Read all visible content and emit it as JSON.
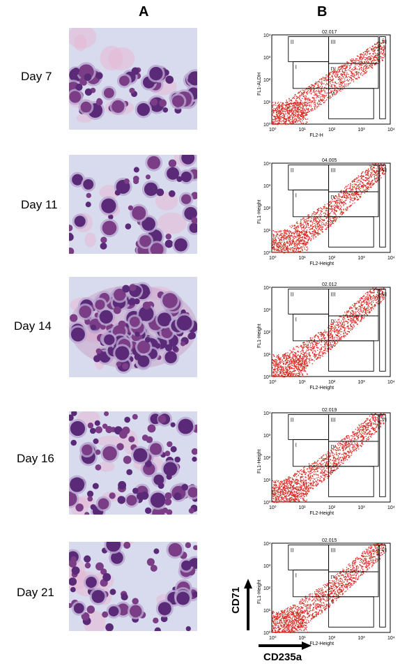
{
  "headers": {
    "a": "A",
    "b": "B"
  },
  "rows": [
    {
      "day": "Day 7",
      "sample": "02.017",
      "xlabel": "FL2-H",
      "ylabel": "FL1-ALDH"
    },
    {
      "day": "Day 11",
      "sample": "04.005",
      "xlabel": "FL2-Height",
      "ylabel": "FL1-Height"
    },
    {
      "day": "Day 14",
      "sample": "02.012",
      "xlabel": "FL2-Height",
      "ylabel": "FL1-Height"
    },
    {
      "day": "Day 16",
      "sample": "02.019",
      "xlabel": "FL2-Height",
      "ylabel": "FL1-Height"
    },
    {
      "day": "Day 21",
      "sample": "02.015",
      "xlabel": "FL2-Height",
      "ylabel": "FL1-Height"
    }
  ],
  "gate_labels": [
    "I",
    "II",
    "III",
    "IV",
    "V",
    "VI"
  ],
  "ticks": [
    "10⁰",
    "10¹",
    "10²",
    "10³",
    "10⁴"
  ],
  "axis_markers": {
    "y": "CD71",
    "x": "CD235a"
  },
  "colors": {
    "dots": "#d8281f",
    "cell_stain": "#5a2a78",
    "background_stain": "#d7dbed"
  }
}
